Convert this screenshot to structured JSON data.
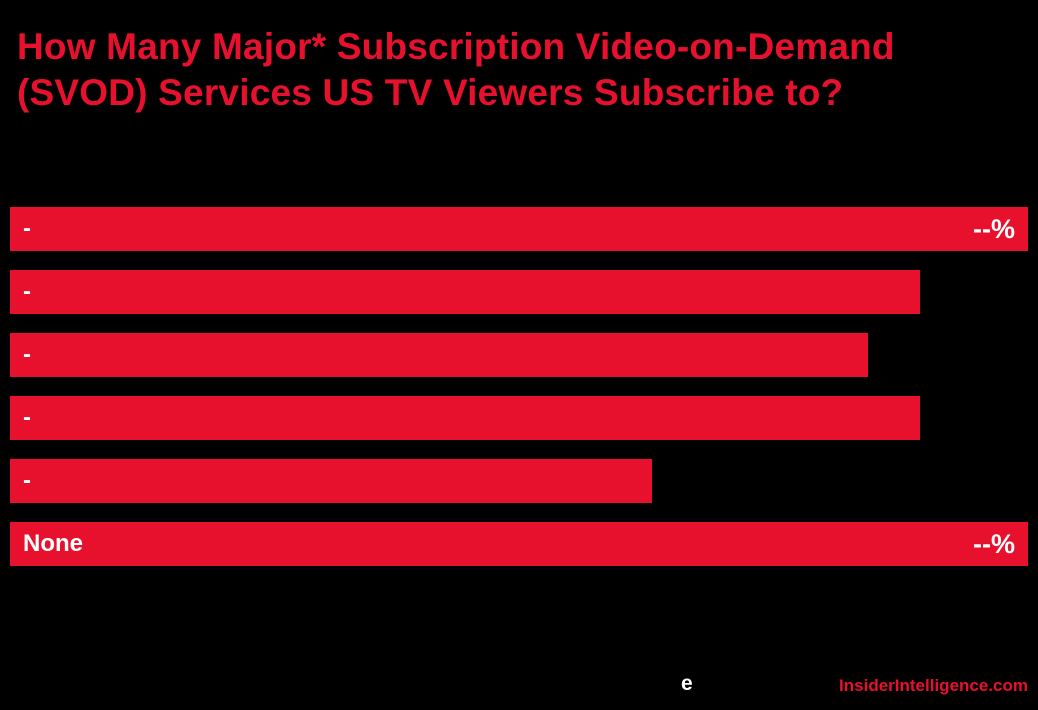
{
  "title": "How Many Major* Subscription Video-on-Demand (SVOD) Services US TV Viewers Subscribe to?",
  "footer": {
    "e_logo": "e",
    "brand": "InsiderIntelligence.com"
  },
  "colors": {
    "background": "#000000",
    "accent_red": "#e8112d",
    "bar_label_text": "#ffffff"
  },
  "chart_data": {
    "type": "bar",
    "orientation": "horizontal",
    "title": "How Many Major* Subscription Video-on-Demand (SVOD) Services US TV Viewers Subscribe to?",
    "categories": [
      "-",
      "-",
      "-",
      "-",
      "-",
      "None"
    ],
    "value_labels": [
      "--%",
      "",
      "",
      "",
      "",
      "--%"
    ],
    "bar_lengths_pct_of_max": [
      100,
      89.4,
      84.3,
      89.4,
      63.1,
      100
    ],
    "grid": false,
    "legend": null
  }
}
